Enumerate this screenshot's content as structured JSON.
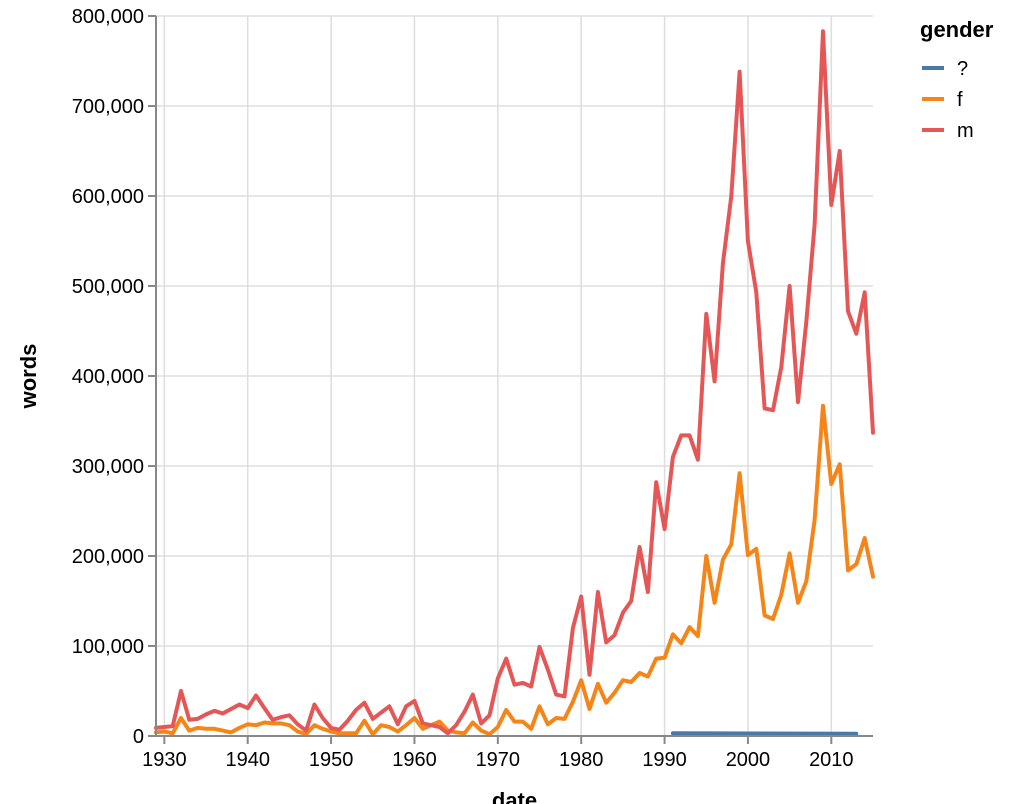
{
  "chart_data": {
    "type": "line",
    "xlabel": "date",
    "ylabel": "words",
    "x_ticks": [
      "1930",
      "1940",
      "1950",
      "1960",
      "1970",
      "1980",
      "1990",
      "2000",
      "2010"
    ],
    "y_ticks": [
      "0",
      "100,000",
      "200,000",
      "300,000",
      "400,000",
      "500,000",
      "600,000",
      "700,000",
      "800,000"
    ],
    "xlim": [
      1929,
      2015
    ],
    "ylim": [
      0,
      800000
    ],
    "grid": true,
    "legend": {
      "title": "gender",
      "placement": "top-right"
    },
    "series": [
      {
        "name": "?",
        "color": "#4c78a8",
        "points": [
          [
            1991,
            3000
          ],
          [
            2013,
            2500
          ]
        ]
      },
      {
        "name": "f",
        "color": "#f58518",
        "points": [
          [
            1929,
            4000
          ],
          [
            1930,
            5000
          ],
          [
            1931,
            3000
          ],
          [
            1932,
            20000
          ],
          [
            1933,
            6000
          ],
          [
            1934,
            9000
          ],
          [
            1935,
            8000
          ],
          [
            1936,
            8000
          ],
          [
            1937,
            6000
          ],
          [
            1938,
            4000
          ],
          [
            1939,
            9000
          ],
          [
            1940,
            13000
          ],
          [
            1941,
            12000
          ],
          [
            1942,
            15000
          ],
          [
            1943,
            14000
          ],
          [
            1944,
            14000
          ],
          [
            1945,
            12000
          ],
          [
            1946,
            5000
          ],
          [
            1947,
            2000
          ],
          [
            1948,
            12000
          ],
          [
            1949,
            8000
          ],
          [
            1950,
            5000
          ],
          [
            1951,
            3000
          ],
          [
            1952,
            3000
          ],
          [
            1953,
            3000
          ],
          [
            1954,
            17000
          ],
          [
            1955,
            2000
          ],
          [
            1956,
            12000
          ],
          [
            1957,
            10000
          ],
          [
            1958,
            5000
          ],
          [
            1959,
            12000
          ],
          [
            1960,
            20000
          ],
          [
            1961,
            8000
          ],
          [
            1962,
            12000
          ],
          [
            1963,
            16000
          ],
          [
            1964,
            6000
          ],
          [
            1965,
            4000
          ],
          [
            1966,
            3000
          ],
          [
            1967,
            15000
          ],
          [
            1968,
            6000
          ],
          [
            1969,
            2000
          ],
          [
            1970,
            10000
          ],
          [
            1971,
            29000
          ],
          [
            1972,
            16000
          ],
          [
            1973,
            16000
          ],
          [
            1974,
            8000
          ],
          [
            1975,
            33000
          ],
          [
            1976,
            13000
          ],
          [
            1977,
            20000
          ],
          [
            1978,
            19000
          ],
          [
            1979,
            38000
          ],
          [
            1980,
            62000
          ],
          [
            1981,
            30000
          ],
          [
            1982,
            58000
          ],
          [
            1983,
            37000
          ],
          [
            1984,
            48000
          ],
          [
            1985,
            62000
          ],
          [
            1986,
            60000
          ],
          [
            1987,
            70000
          ],
          [
            1988,
            66000
          ],
          [
            1989,
            86000
          ],
          [
            1990,
            87000
          ],
          [
            1991,
            113000
          ],
          [
            1992,
            103000
          ],
          [
            1993,
            121000
          ],
          [
            1994,
            111000
          ],
          [
            1995,
            200000
          ],
          [
            1996,
            148000
          ],
          [
            1997,
            196000
          ],
          [
            1998,
            213000
          ],
          [
            1999,
            292000
          ],
          [
            2000,
            201000
          ],
          [
            2001,
            208000
          ],
          [
            2002,
            134000
          ],
          [
            2003,
            130000
          ],
          [
            2004,
            157000
          ],
          [
            2005,
            203000
          ],
          [
            2006,
            148000
          ],
          [
            2007,
            172000
          ],
          [
            2008,
            240000
          ],
          [
            2009,
            367000
          ],
          [
            2010,
            280000
          ],
          [
            2011,
            302000
          ],
          [
            2012,
            184000
          ],
          [
            2013,
            191000
          ],
          [
            2014,
            220000
          ],
          [
            2015,
            177000
          ]
        ]
      },
      {
        "name": "m",
        "color": "#e45756",
        "points": [
          [
            1929,
            9000
          ],
          [
            1930,
            10000
          ],
          [
            1931,
            11000
          ],
          [
            1932,
            50000
          ],
          [
            1933,
            18000
          ],
          [
            1934,
            19000
          ],
          [
            1935,
            24000
          ],
          [
            1936,
            28000
          ],
          [
            1937,
            25000
          ],
          [
            1938,
            30000
          ],
          [
            1939,
            35000
          ],
          [
            1940,
            31000
          ],
          [
            1941,
            45000
          ],
          [
            1942,
            31000
          ],
          [
            1943,
            18000
          ],
          [
            1944,
            21000
          ],
          [
            1945,
            23000
          ],
          [
            1946,
            13000
          ],
          [
            1947,
            6000
          ],
          [
            1948,
            35000
          ],
          [
            1949,
            20000
          ],
          [
            1950,
            9000
          ],
          [
            1951,
            7000
          ],
          [
            1952,
            17000
          ],
          [
            1953,
            29000
          ],
          [
            1954,
            37000
          ],
          [
            1955,
            19000
          ],
          [
            1956,
            26000
          ],
          [
            1957,
            33000
          ],
          [
            1958,
            13000
          ],
          [
            1959,
            33000
          ],
          [
            1960,
            39000
          ],
          [
            1961,
            14000
          ],
          [
            1962,
            12000
          ],
          [
            1963,
            10000
          ],
          [
            1964,
            3000
          ],
          [
            1965,
            12000
          ],
          [
            1966,
            27000
          ],
          [
            1967,
            46000
          ],
          [
            1968,
            14000
          ],
          [
            1969,
            23000
          ],
          [
            1970,
            64000
          ],
          [
            1971,
            86000
          ],
          [
            1972,
            57000
          ],
          [
            1973,
            59000
          ],
          [
            1974,
            55000
          ],
          [
            1975,
            99000
          ],
          [
            1976,
            74000
          ],
          [
            1977,
            46000
          ],
          [
            1978,
            44000
          ],
          [
            1979,
            120000
          ],
          [
            1980,
            155000
          ],
          [
            1981,
            68000
          ],
          [
            1982,
            160000
          ],
          [
            1983,
            104000
          ],
          [
            1984,
            112000
          ],
          [
            1985,
            137000
          ],
          [
            1986,
            150000
          ],
          [
            1987,
            210000
          ],
          [
            1988,
            160000
          ],
          [
            1989,
            282000
          ],
          [
            1990,
            230000
          ],
          [
            1991,
            310000
          ],
          [
            1992,
            334000
          ],
          [
            1993,
            334000
          ],
          [
            1994,
            307000
          ],
          [
            1995,
            469000
          ],
          [
            1996,
            394000
          ],
          [
            1997,
            525000
          ],
          [
            1998,
            600000
          ],
          [
            1999,
            738000
          ],
          [
            2000,
            550000
          ],
          [
            2001,
            493000
          ],
          [
            2002,
            364000
          ],
          [
            2003,
            362000
          ],
          [
            2004,
            410000
          ],
          [
            2005,
            500000
          ],
          [
            2006,
            371000
          ],
          [
            2007,
            460000
          ],
          [
            2008,
            568000
          ],
          [
            2009,
            783000
          ],
          [
            2010,
            590000
          ],
          [
            2011,
            650000
          ],
          [
            2012,
            472000
          ],
          [
            2013,
            447000
          ],
          [
            2014,
            493000
          ],
          [
            2015,
            337000
          ]
        ]
      }
    ]
  }
}
